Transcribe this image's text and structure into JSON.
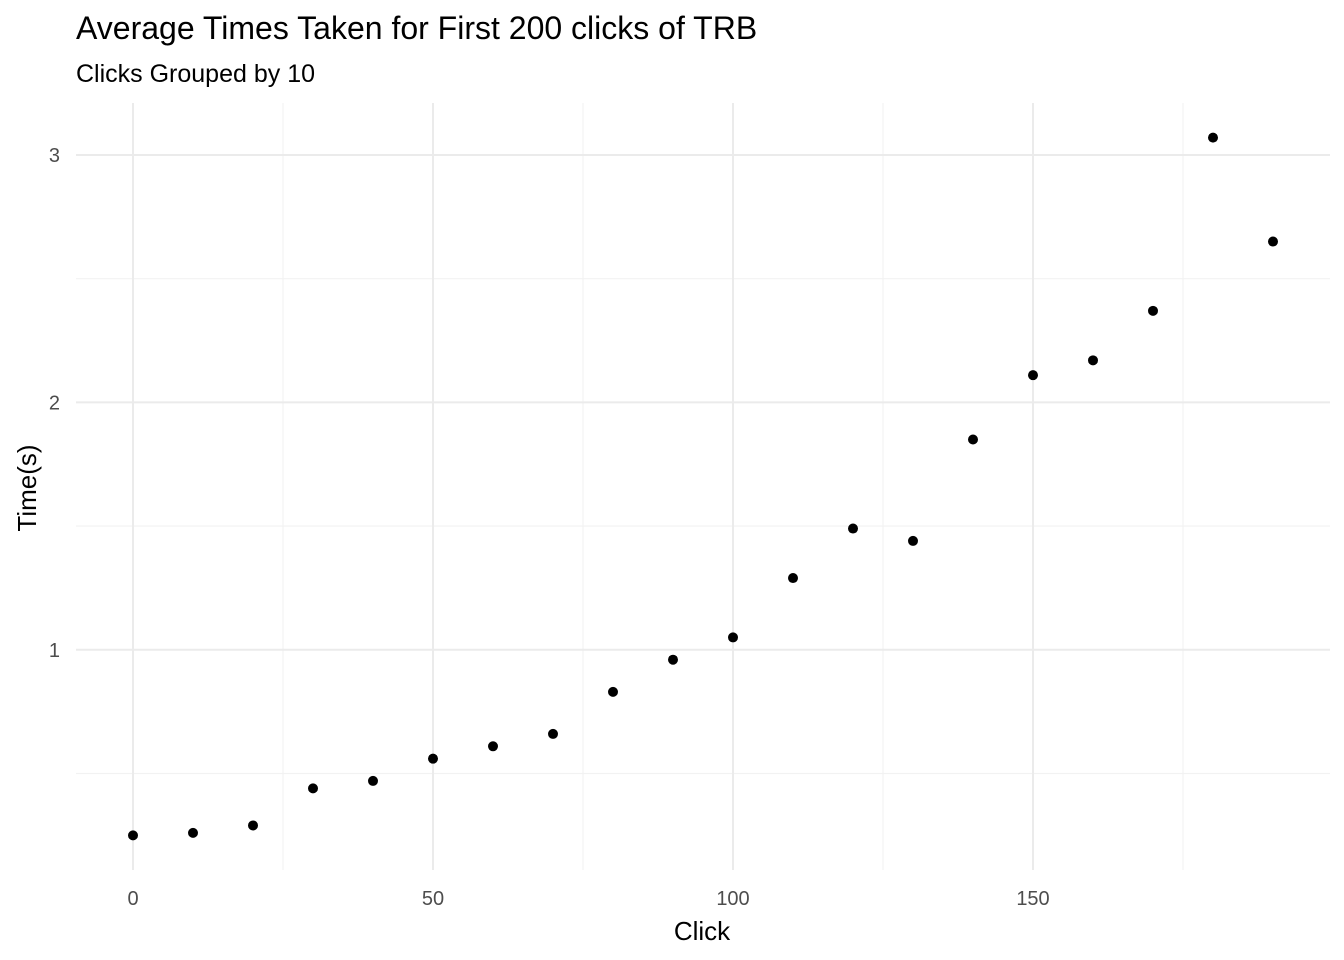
{
  "chart_data": {
    "type": "scatter",
    "title": "Average Times Taken for First 200 clicks of TRB",
    "subtitle": "Clicks Grouped by 10",
    "xlabel": "Click",
    "ylabel": "Time(s)",
    "xlim": [
      -9.5,
      199.5
    ],
    "ylim": [
      0.11,
      3.21
    ],
    "xticks": [
      0,
      50,
      100,
      150
    ],
    "yticks": [
      1,
      2,
      3
    ],
    "grid": true,
    "legend": "none",
    "point_color": "#000000",
    "points": [
      {
        "x": 0,
        "y": 0.25
      },
      {
        "x": 10,
        "y": 0.26
      },
      {
        "x": 20,
        "y": 0.29
      },
      {
        "x": 30,
        "y": 0.44
      },
      {
        "x": 40,
        "y": 0.47
      },
      {
        "x": 50,
        "y": 0.56
      },
      {
        "x": 60,
        "y": 0.61
      },
      {
        "x": 70,
        "y": 0.66
      },
      {
        "x": 80,
        "y": 0.83
      },
      {
        "x": 90,
        "y": 0.96
      },
      {
        "x": 100,
        "y": 1.05
      },
      {
        "x": 110,
        "y": 1.29
      },
      {
        "x": 120,
        "y": 1.49
      },
      {
        "x": 130,
        "y": 1.44
      },
      {
        "x": 140,
        "y": 1.85
      },
      {
        "x": 150,
        "y": 2.11
      },
      {
        "x": 160,
        "y": 2.17
      },
      {
        "x": 170,
        "y": 2.37
      },
      {
        "x": 180,
        "y": 3.07
      },
      {
        "x": 190,
        "y": 2.65
      }
    ]
  }
}
